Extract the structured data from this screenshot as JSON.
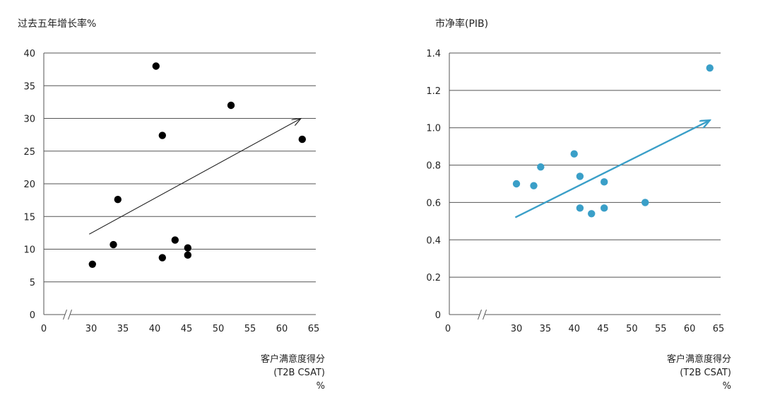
{
  "chart_data": [
    {
      "type": "scatter",
      "title": "",
      "ylabel": "过去五年增长率%",
      "xlabel_lines": [
        "客户满意度得分",
        "(T2B CSAT)",
        "%"
      ],
      "xticks": [
        0,
        30,
        35,
        40,
        45,
        50,
        55,
        60,
        65
      ],
      "yticks": [
        0,
        5,
        10,
        15,
        20,
        25,
        30,
        35,
        40
      ],
      "xlim": [
        30,
        65
      ],
      "ylim": [
        0,
        40
      ],
      "axis_break": true,
      "grid": true,
      "point_color": "#000000",
      "arrow_color": "#222222",
      "points": [
        {
          "x": 30.2,
          "y": 7.7
        },
        {
          "x": 33.5,
          "y": 10.7
        },
        {
          "x": 34.2,
          "y": 17.6
        },
        {
          "x": 40.2,
          "y": 38.0
        },
        {
          "x": 41.2,
          "y": 27.4
        },
        {
          "x": 41.2,
          "y": 8.7
        },
        {
          "x": 43.2,
          "y": 11.4
        },
        {
          "x": 45.2,
          "y": 10.2
        },
        {
          "x": 45.2,
          "y": 9.1
        },
        {
          "x": 52.0,
          "y": 32.0
        },
        {
          "x": 63.2,
          "y": 26.8
        }
      ],
      "trend": {
        "from": {
          "x": 29.7,
          "y": 12.3
        },
        "to": {
          "x": 63.0,
          "y": 30.0
        }
      }
    },
    {
      "type": "scatter",
      "title": "",
      "ylabel": "市净率(PIB)",
      "xlabel_lines": [
        "客户满意度得分",
        "(T2B CSAT)",
        "%"
      ],
      "xticks": [
        0,
        30,
        35,
        40,
        45,
        50,
        55,
        60,
        65
      ],
      "yticks": [
        0,
        0.2,
        0.4,
        0.6,
        0.8,
        1.0,
        1.2,
        1.4
      ],
      "ytick_labels": [
        "0",
        "0.2",
        "0.4",
        "0.6",
        "0.8",
        "1.0",
        "1.2",
        "1.4"
      ],
      "xlim": [
        30,
        65
      ],
      "ylim": [
        0,
        1.4
      ],
      "axis_break": true,
      "grid": true,
      "point_color": "#3a9fc8",
      "arrow_color": "#3a9fc8",
      "points": [
        {
          "x": 30.0,
          "y": 0.7
        },
        {
          "x": 33.0,
          "y": 0.69
        },
        {
          "x": 34.2,
          "y": 0.79
        },
        {
          "x": 40.0,
          "y": 0.86
        },
        {
          "x": 41.0,
          "y": 0.74
        },
        {
          "x": 41.0,
          "y": 0.57
        },
        {
          "x": 43.0,
          "y": 0.54
        },
        {
          "x": 45.2,
          "y": 0.71
        },
        {
          "x": 45.2,
          "y": 0.57
        },
        {
          "x": 52.3,
          "y": 0.6
        },
        {
          "x": 63.5,
          "y": 1.32
        }
      ],
      "trend": {
        "from": {
          "x": 29.8,
          "y": 0.52
        },
        "to": {
          "x": 63.5,
          "y": 1.04
        }
      }
    }
  ]
}
